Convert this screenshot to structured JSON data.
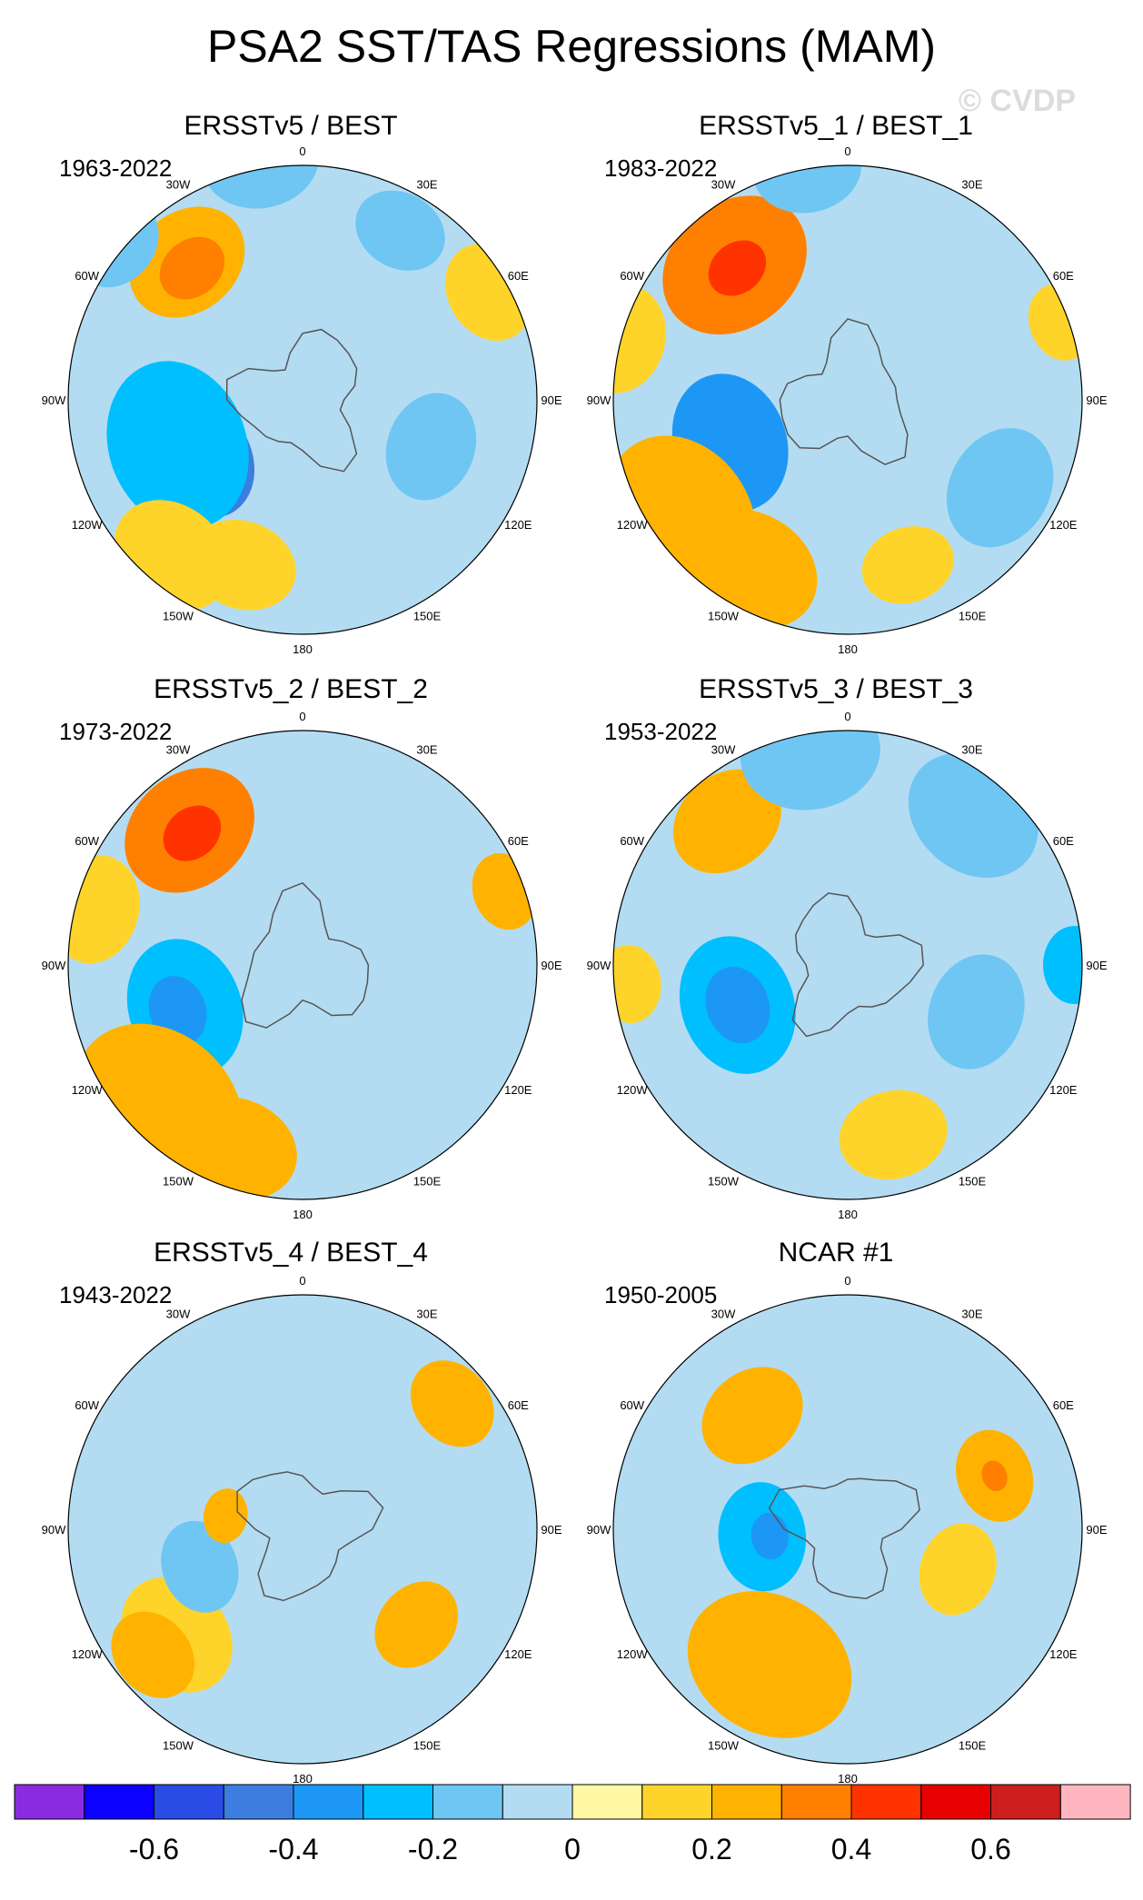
{
  "title": "PSA2 SST/TAS Regressions (MAM)",
  "watermark": "© CVDP",
  "lon_labels": [
    "0",
    "30E",
    "60E",
    "90E",
    "120E",
    "150E",
    "180",
    "150W",
    "120W",
    "90W",
    "60W",
    "30W"
  ],
  "chart_data": {
    "type": "heatmap",
    "description_unit": "regression coefficient",
    "panels": [
      {
        "title": "ERSSTv5 / BEST",
        "years": "1963-2022",
        "anomalies": [
          {
            "lon": -120,
            "colat": 30,
            "r": 16,
            "v": -0.45
          },
          {
            "lon": -110,
            "colat": 34,
            "r": 22,
            "v": -0.3
          },
          {
            "lon": -140,
            "colat": 52,
            "r": 16,
            "v": 0.15
          },
          {
            "lon": -40,
            "colat": 46,
            "r": 16,
            "v": 0.25
          },
          {
            "lon": -40,
            "colat": 44,
            "r": 9,
            "v": 0.35
          },
          {
            "lon": -10,
            "colat": 62,
            "r": 15,
            "v": -0.2
          },
          {
            "lon": -50,
            "colat": 62,
            "r": 12,
            "v": -0.2
          },
          {
            "lon": 60,
            "colat": 55,
            "r": 13,
            "v": 0.1
          },
          {
            "lon": 30,
            "colat": 50,
            "r": 12,
            "v": -0.2
          },
          {
            "lon": 110,
            "colat": 35,
            "r": 14,
            "v": -0.2
          },
          {
            "lon": -160,
            "colat": 45,
            "r": 14,
            "v": 0.1
          }
        ]
      },
      {
        "title": "ERSSTv5_1 / BEST_1",
        "years": "1983-2022",
        "anomalies": [
          {
            "lon": -110,
            "colat": 32,
            "r": 18,
            "v": -0.35
          },
          {
            "lon": -125,
            "colat": 52,
            "r": 22,
            "v": 0.2
          },
          {
            "lon": -150,
            "colat": 50,
            "r": 18,
            "v": 0.2
          },
          {
            "lon": -40,
            "colat": 45,
            "r": 20,
            "v": 0.3
          },
          {
            "lon": -40,
            "colat": 44,
            "r": 8,
            "v": 0.4
          },
          {
            "lon": -75,
            "colat": 60,
            "r": 14,
            "v": 0.1
          },
          {
            "lon": 70,
            "colat": 58,
            "r": 10,
            "v": 0.1
          },
          {
            "lon": 120,
            "colat": 45,
            "r": 16,
            "v": -0.2
          },
          {
            "lon": 160,
            "colat": 45,
            "r": 12,
            "v": 0.15
          },
          {
            "lon": -10,
            "colat": 60,
            "r": 14,
            "v": -0.2
          }
        ]
      },
      {
        "title": "ERSSTv5_2 / BEST_2",
        "years": "1973-2022",
        "anomalies": [
          {
            "lon": -110,
            "colat": 32,
            "r": 18,
            "v": -0.3
          },
          {
            "lon": -110,
            "colat": 34,
            "r": 9,
            "v": -0.35
          },
          {
            "lon": -135,
            "colat": 52,
            "r": 24,
            "v": 0.2
          },
          {
            "lon": -160,
            "colat": 50,
            "r": 16,
            "v": 0.2
          },
          {
            "lon": -40,
            "colat": 45,
            "r": 18,
            "v": 0.3
          },
          {
            "lon": -40,
            "colat": 44,
            "r": 8,
            "v": 0.4
          },
          {
            "lon": 70,
            "colat": 55,
            "r": 10,
            "v": 0.2
          },
          {
            "lon": -75,
            "colat": 55,
            "r": 14,
            "v": 0.1
          }
        ]
      },
      {
        "title": "ERSSTv5_3 / BEST_3",
        "years": "1953-2022",
        "anomalies": [
          {
            "lon": -110,
            "colat": 30,
            "r": 18,
            "v": -0.3
          },
          {
            "lon": -110,
            "colat": 30,
            "r": 10,
            "v": -0.35
          },
          {
            "lon": -40,
            "colat": 48,
            "r": 15,
            "v": 0.2
          },
          {
            "lon": -10,
            "colat": 55,
            "r": 18,
            "v": -0.2
          },
          {
            "lon": 40,
            "colat": 50,
            "r": 18,
            "v": -0.2
          },
          {
            "lon": 90,
            "colat": 58,
            "r": 10,
            "v": -0.3
          },
          {
            "lon": 110,
            "colat": 35,
            "r": 15,
            "v": -0.2
          },
          {
            "lon": 165,
            "colat": 45,
            "r": 14,
            "v": 0.1
          },
          {
            "lon": -95,
            "colat": 56,
            "r": 10,
            "v": 0.1
          }
        ]
      },
      {
        "title": "ERSSTv5_4 / BEST_4",
        "years": "1943-2022",
        "anomalies": [
          {
            "lon": -130,
            "colat": 42,
            "r": 16,
            "v": 0.1
          },
          {
            "lon": -130,
            "colat": 50,
            "r": 12,
            "v": 0.25
          },
          {
            "lon": -110,
            "colat": 28,
            "r": 12,
            "v": -0.2
          },
          {
            "lon": -10,
            "colat": 55,
            "r": 14,
            "v": -0.1
          },
          {
            "lon": -55,
            "colat": 45,
            "r": 10,
            "v": -0.1
          },
          {
            "lon": 50,
            "colat": 50,
            "r": 12,
            "v": 0.2
          },
          {
            "lon": 130,
            "colat": 38,
            "r": 12,
            "v": 0.25
          },
          {
            "lon": -80,
            "colat": 20,
            "r": 7,
            "v": 0.25
          },
          {
            "lon": 0,
            "colat": 48,
            "r": 12,
            "v": -0.1
          }
        ]
      },
      {
        "title": "NCAR #1",
        "years": "1950-2005",
        "anomalies": [
          {
            "lon": -95,
            "colat": 22,
            "r": 14,
            "v": -0.25
          },
          {
            "lon": -95,
            "colat": 20,
            "r": 6,
            "v": -0.35
          },
          {
            "lon": -150,
            "colat": 40,
            "r": 22,
            "v": 0.2
          },
          {
            "lon": -40,
            "colat": 38,
            "r": 14,
            "v": 0.2
          },
          {
            "lon": 70,
            "colat": 40,
            "r": 12,
            "v": 0.2
          },
          {
            "lon": 70,
            "colat": 40,
            "r": 4,
            "v": 0.3
          },
          {
            "lon": -10,
            "colat": 55,
            "r": 14,
            "v": -0.1
          },
          {
            "lon": 130,
            "colat": 48,
            "r": 14,
            "v": -0.1
          },
          {
            "lon": 110,
            "colat": 30,
            "r": 12,
            "v": 0.1
          }
        ]
      }
    ],
    "colorbar": {
      "colors": [
        "#8a2be2",
        "#0c00ff",
        "#2a4be6",
        "#3b7ee0",
        "#1d97f5",
        "#00bfff",
        "#6fc6f3",
        "#b3dcf2",
        "#fff7a3",
        "#ffd42a",
        "#ffb300",
        "#ff8000",
        "#ff3300",
        "#e60000",
        "#cc1e1e",
        "#ffb6c1"
      ],
      "tick_labels": [
        "-0.6",
        "-0.4",
        "-0.2",
        "0",
        "0.2",
        "0.4",
        "0.6"
      ],
      "levels": [
        -0.7,
        -0.6,
        -0.5,
        -0.4,
        -0.3,
        -0.2,
        -0.1,
        0,
        0.1,
        0.2,
        0.3,
        0.4,
        0.5,
        0.6,
        0.7
      ]
    }
  }
}
